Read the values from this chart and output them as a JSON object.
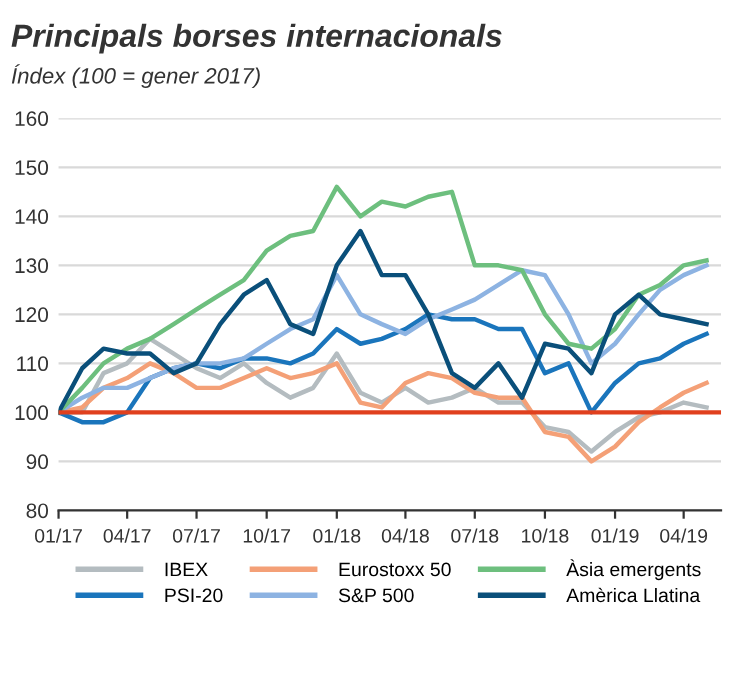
{
  "chart_data": {
    "type": "line",
    "title": "Principals borses internacionals",
    "subtitle": "Índex (100 = gener 2017)",
    "x": [
      "2017-01-01",
      "2017-02-01",
      "2017-03-01",
      "2017-04-01",
      "2017-05-01",
      "2017-06-01",
      "2017-07-01",
      "2017-08-01",
      "2017-09-01",
      "2017-10-01",
      "2017-11-01",
      "2017-12-01",
      "2018-01-01",
      "2018-02-01",
      "2018-03-01",
      "2018-04-01",
      "2018-05-01",
      "2018-06-01",
      "2018-07-01",
      "2018-08-01",
      "2018-09-01",
      "2018-10-01",
      "2018-11-01",
      "2018-12-01",
      "2019-01-01",
      "2019-02-01",
      "2019-03-01",
      "2019-04-01",
      "2019-05-01"
    ],
    "series": [
      {
        "name": "IBEX",
        "color": "#b4bcc0",
        "values": [
          100,
          100,
          108,
          110,
          115,
          112,
          109,
          107,
          110,
          106,
          103,
          105,
          112,
          104,
          102,
          105,
          102,
          103,
          105,
          102,
          102,
          97,
          96,
          92,
          96,
          99,
          100,
          102,
          101
        ]
      },
      {
        "name": "PSI-20",
        "color": "#1a75bc",
        "values": [
          100,
          98,
          98,
          100,
          107,
          109,
          110,
          109,
          111,
          111,
          110,
          112,
          117,
          114,
          115,
          117,
          120,
          119,
          119,
          117,
          117,
          108,
          110,
          100,
          106,
          110,
          111,
          114,
          116
        ]
      },
      {
        "name": "Eurostoxx 50",
        "color": "#f4a077",
        "values": [
          100,
          101,
          105,
          107,
          110,
          108,
          105,
          105,
          107,
          109,
          107,
          108,
          110,
          102,
          101,
          106,
          108,
          107,
          104,
          103,
          103,
          96,
          95,
          90,
          93,
          98,
          101,
          104,
          106
        ]
      },
      {
        "name": "S&P 500",
        "color": "#8db3e2",
        "values": [
          100,
          103,
          105,
          105,
          107,
          109,
          110,
          110,
          111,
          114,
          117,
          119,
          128,
          120,
          118,
          116,
          119,
          121,
          123,
          126,
          129,
          128,
          120,
          110,
          114,
          120,
          125,
          128,
          130
        ]
      },
      {
        "name": "Àsia emergents",
        "color": "#6dbf7e",
        "values": [
          100,
          105,
          110,
          113,
          115,
          118,
          121,
          124,
          127,
          133,
          136,
          137,
          146,
          140,
          143,
          142,
          144,
          145,
          130,
          130,
          129,
          120,
          114,
          113,
          117,
          124,
          126,
          130,
          131
        ]
      },
      {
        "name": "Amèrica Llatina",
        "color": "#0a4f7a",
        "values": [
          100,
          109,
          113,
          112,
          112,
          108,
          110,
          118,
          124,
          127,
          118,
          116,
          130,
          137,
          128,
          128,
          120,
          108,
          105,
          110,
          103,
          114,
          113,
          108,
          120,
          124,
          120,
          119,
          118
        ]
      }
    ],
    "xlim": [
      "2017-01-01",
      "2019-05-20"
    ],
    "xticks": [
      {
        "value": "2017-01-01",
        "label": "01/17"
      },
      {
        "value": "2017-04-01",
        "label": "04/17"
      },
      {
        "value": "2017-07-01",
        "label": "07/17"
      },
      {
        "value": "2017-10-01",
        "label": "10/17"
      },
      {
        "value": "2018-01-01",
        "label": "01/18"
      },
      {
        "value": "2018-04-01",
        "label": "04/18"
      },
      {
        "value": "2018-07-01",
        "label": "07/18"
      },
      {
        "value": "2018-10-01",
        "label": "10/18"
      },
      {
        "value": "2019-01-01",
        "label": "01/19"
      },
      {
        "value": "2019-04-01",
        "label": "04/19"
      }
    ],
    "ylim": [
      80,
      160
    ],
    "yticks": [
      80,
      90,
      100,
      110,
      120,
      130,
      140,
      150,
      160
    ],
    "ref_lines": [
      {
        "axis": "y",
        "value": 100,
        "color": "#e0401e"
      }
    ],
    "grid": "y",
    "legend": "bottom",
    "marker": "none",
    "line_style": "solid"
  }
}
